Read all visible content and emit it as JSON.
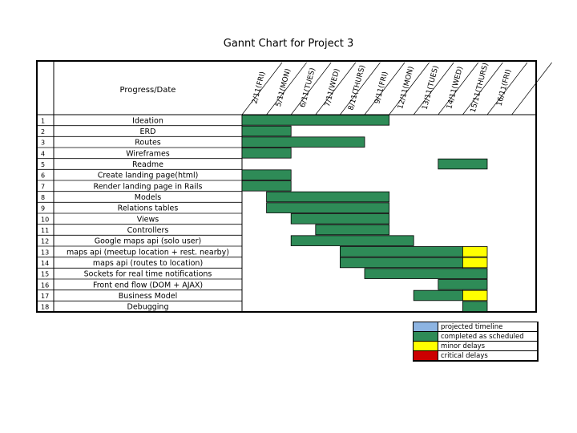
{
  "chart_data": {
    "type": "gantt",
    "title": "Gannt Chart for Project 3",
    "header_label": "Progress/Date",
    "dates": [
      "2/11(FRI)",
      "5/11(MON)",
      "6/11(TUES)",
      "7/11(WED)",
      "8/11(THURS)",
      "9/11(FRI)",
      "12/11(MON)",
      "13/11(TUES)",
      "14/11(WED)",
      "15/11(THURS)",
      "16/11(FRI)"
    ],
    "tasks": [
      {
        "id": "1",
        "name": "Ideation",
        "segments": [
          {
            "start": 0,
            "end": 6,
            "status": "completed"
          }
        ]
      },
      {
        "id": "2",
        "name": "ERD",
        "segments": [
          {
            "start": 0,
            "end": 2,
            "status": "completed"
          }
        ]
      },
      {
        "id": "3",
        "name": "Routes",
        "segments": [
          {
            "start": 0,
            "end": 5,
            "status": "completed"
          }
        ]
      },
      {
        "id": "4",
        "name": "Wireframes",
        "segments": [
          {
            "start": 0,
            "end": 2,
            "status": "completed"
          }
        ]
      },
      {
        "id": "5",
        "name": "Readme",
        "segments": [
          {
            "start": 8,
            "end": 10,
            "status": "completed"
          }
        ]
      },
      {
        "id": "6",
        "name": "Create landing page(html)",
        "segments": [
          {
            "start": 0,
            "end": 2,
            "status": "completed"
          }
        ]
      },
      {
        "id": "7",
        "name": "Render landing page in Rails",
        "segments": [
          {
            "start": 0,
            "end": 2,
            "status": "completed"
          }
        ]
      },
      {
        "id": "8",
        "name": "Models",
        "segments": [
          {
            "start": 1,
            "end": 6,
            "status": "completed"
          }
        ]
      },
      {
        "id": "9",
        "name": "Relations tables",
        "segments": [
          {
            "start": 1,
            "end": 6,
            "status": "completed"
          }
        ]
      },
      {
        "id": "10",
        "name": "Views",
        "segments": [
          {
            "start": 2,
            "end": 6,
            "status": "completed"
          }
        ]
      },
      {
        "id": "11",
        "name": "Controllers",
        "segments": [
          {
            "start": 3,
            "end": 6,
            "status": "completed"
          }
        ]
      },
      {
        "id": "12",
        "name": "Google maps api (solo user)",
        "segments": [
          {
            "start": 2,
            "end": 7,
            "status": "completed"
          }
        ]
      },
      {
        "id": "13",
        "name": "maps api (meetup location + rest. nearby)",
        "segments": [
          {
            "start": 4,
            "end": 9,
            "status": "completed"
          },
          {
            "start": 9,
            "end": 10,
            "status": "minor"
          }
        ]
      },
      {
        "id": "14",
        "name": "maps api (routes to location)",
        "segments": [
          {
            "start": 4,
            "end": 9,
            "status": "completed"
          },
          {
            "start": 9,
            "end": 10,
            "status": "minor"
          }
        ]
      },
      {
        "id": "15",
        "name": "Sockets for real time notifications",
        "segments": [
          {
            "start": 5,
            "end": 10,
            "status": "completed"
          }
        ]
      },
      {
        "id": "16",
        "name": "Front end flow (DOM + AJAX)",
        "segments": [
          {
            "start": 8,
            "end": 10,
            "status": "completed"
          }
        ]
      },
      {
        "id": "17",
        "name": "Business Model",
        "segments": [
          {
            "start": 7,
            "end": 9,
            "status": "completed"
          },
          {
            "start": 9,
            "end": 10,
            "status": "minor"
          }
        ]
      },
      {
        "id": "18",
        "name": "Debugging",
        "segments": [
          {
            "start": 9,
            "end": 10,
            "status": "completed"
          }
        ]
      }
    ],
    "legend": [
      {
        "key": "projected",
        "label": "projected timeline",
        "color": "#8db4e2"
      },
      {
        "key": "completed",
        "label": "completed as scheduled",
        "color": "#2e8b57"
      },
      {
        "key": "minor",
        "label": "minor delays",
        "color": "#ffff00"
      },
      {
        "key": "critical",
        "label": "critical delays",
        "color": "#cc0000"
      }
    ]
  }
}
